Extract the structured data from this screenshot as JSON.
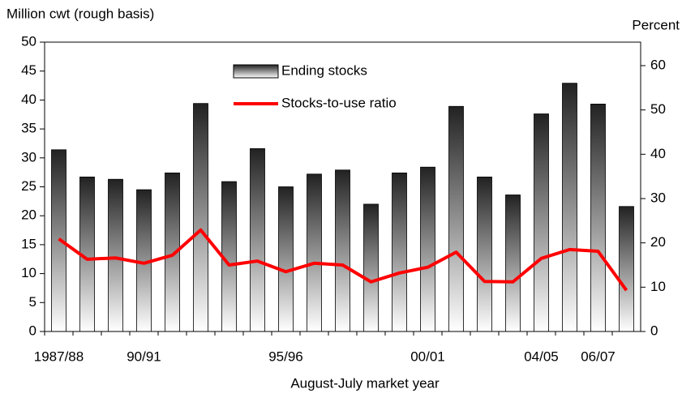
{
  "chart_data": {
    "type": "bar_line",
    "y_label": "Million cwt (rough basis)",
    "y2_label": "Percent",
    "x_label": "August-July market year",
    "categories": [
      "1987/88",
      null,
      null,
      "90/91",
      null,
      null,
      null,
      null,
      "95/96",
      null,
      null,
      null,
      null,
      "00/01",
      null,
      null,
      null,
      "04/05",
      null,
      "06/07",
      null
    ],
    "series": [
      {
        "name": "Ending stocks",
        "type": "bar",
        "color": "#000000",
        "values": [
          31.4,
          26.7,
          26.3,
          24.5,
          27.4,
          39.4,
          25.9,
          31.6,
          25.0,
          27.2,
          27.9,
          22.0,
          27.4,
          28.4,
          38.9,
          26.7,
          23.6,
          37.6,
          42.9,
          39.3,
          21.6
        ]
      },
      {
        "name": "Stocks-to-use ratio",
        "type": "line",
        "axis": "y2",
        "color": "#ff0000",
        "values": [
          20.9,
          16.3,
          16.6,
          15.4,
          17.2,
          22.9,
          15.0,
          15.9,
          13.5,
          15.4,
          15.0,
          11.2,
          13.2,
          14.5,
          17.9,
          11.3,
          11.2,
          16.5,
          18.5,
          18.1,
          9.3
        ]
      }
    ],
    "ylim": [
      0,
      50
    ],
    "yticks": [
      0,
      5,
      10,
      15,
      20,
      25,
      30,
      35,
      40,
      45,
      50
    ],
    "y2lim": [
      0,
      65.3
    ],
    "y2ticks": [
      0,
      10,
      20,
      30,
      40,
      50,
      60
    ]
  }
}
